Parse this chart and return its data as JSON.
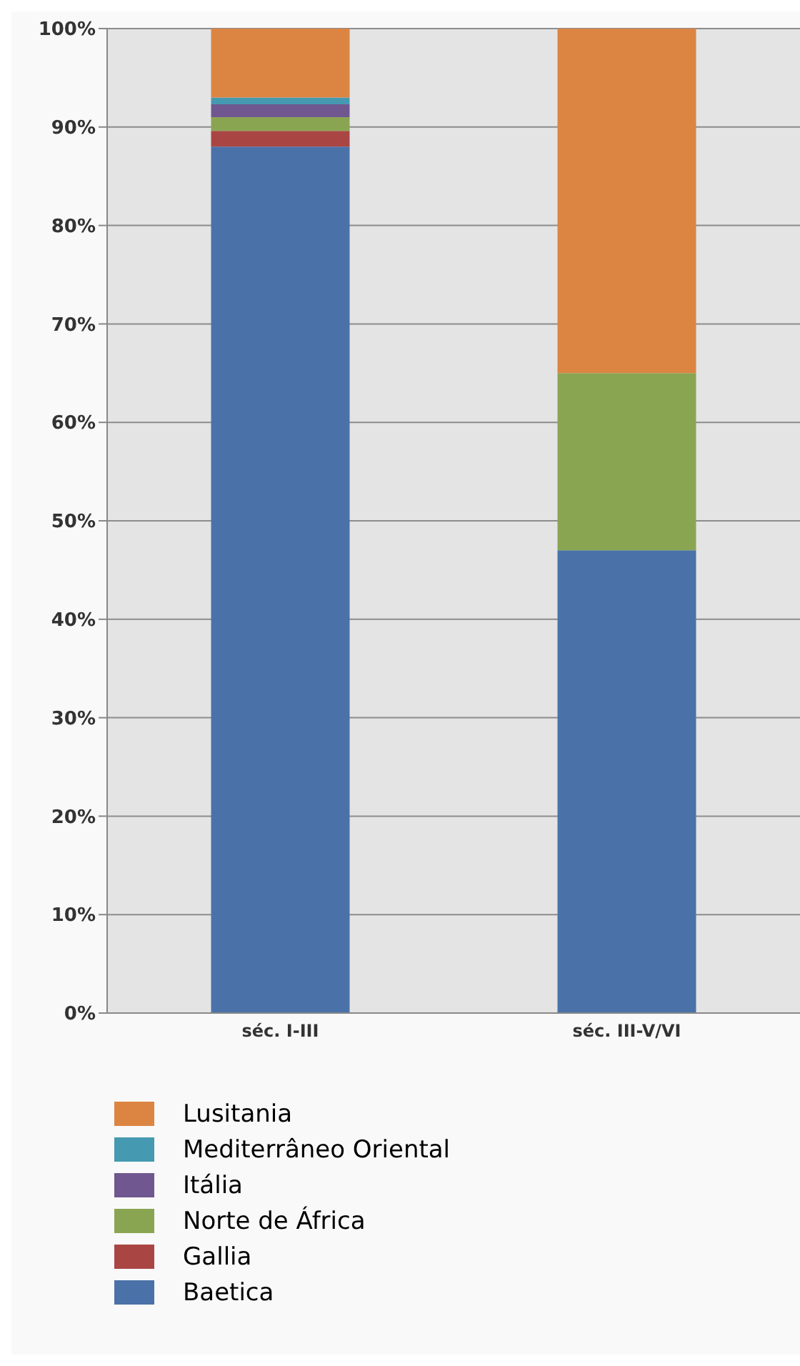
{
  "chart_data": {
    "type": "bar",
    "stacked": true,
    "categories": [
      "séc. I-III",
      "séc. III-V/VI"
    ],
    "series": [
      {
        "name": "Baetica",
        "color": "#4a72a9",
        "values": [
          88,
          47
        ]
      },
      {
        "name": "Gallia",
        "color": "#a94644",
        "values": [
          1.6,
          0
        ]
      },
      {
        "name": "Norte de África",
        "color": "#8aa552",
        "values": [
          1.4,
          18
        ]
      },
      {
        "name": "Itália",
        "color": "#70578f",
        "values": [
          1.3,
          0
        ]
      },
      {
        "name": "Mediterrâneo Oriental",
        "color": "#4599b1",
        "values": [
          0.7,
          0
        ]
      },
      {
        "name": "Lusitania",
        "color": "#dc8543",
        "values": [
          7,
          35
        ]
      }
    ],
    "ylim": [
      0,
      100
    ],
    "yticks": [
      {
        "value": 0,
        "label": "0%"
      },
      {
        "value": 10,
        "label": "10%"
      },
      {
        "value": 20,
        "label": "20%"
      },
      {
        "value": 30,
        "label": "30%"
      },
      {
        "value": 40,
        "label": "40%"
      },
      {
        "value": 50,
        "label": "50%"
      },
      {
        "value": 60,
        "label": "60%"
      },
      {
        "value": 70,
        "label": "70%"
      },
      {
        "value": 80,
        "label": "80%"
      },
      {
        "value": 90,
        "label": "90%"
      },
      {
        "value": 100,
        "label": "100%"
      }
    ],
    "grid": "y",
    "legend": "bottom left"
  }
}
